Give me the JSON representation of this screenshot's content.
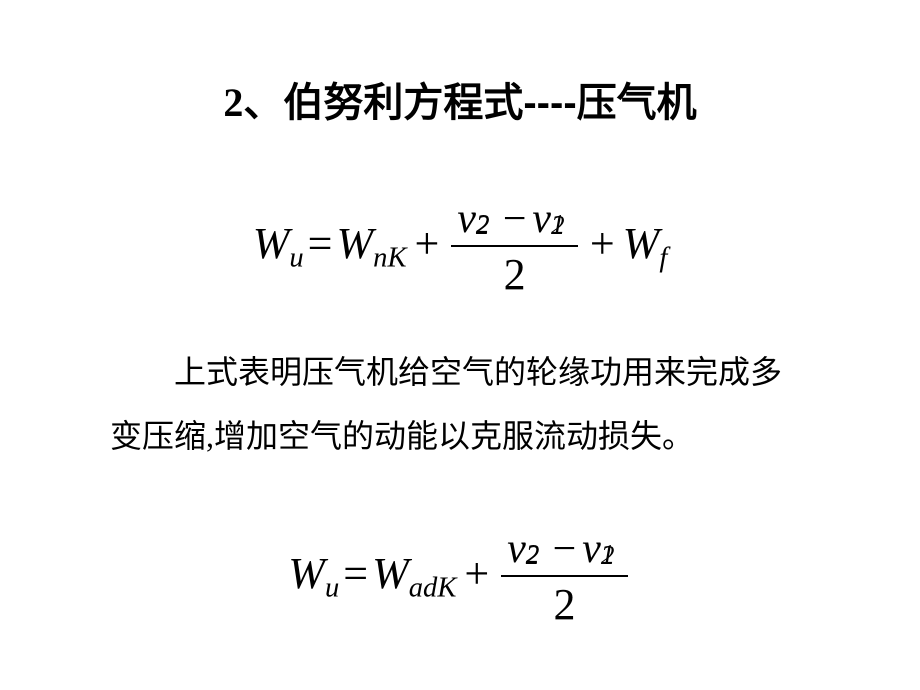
{
  "slide": {
    "background_color": "#ffffff",
    "text_color": "#000000"
  },
  "title": {
    "number": "2",
    "separator": "、",
    "text": "伯努利方程式----压气机",
    "fontsize": 40,
    "font_weight": "bold"
  },
  "equation1": {
    "lhs_var": "W",
    "lhs_sub": "u",
    "eq": "=",
    "term1_var": "W",
    "term1_sub": "nK",
    "plus": "+",
    "frac_num_v1": "v",
    "frac_num_v1_sub": "2",
    "frac_num_v1_sup": "2",
    "frac_num_minus": "−",
    "frac_num_v2": "v",
    "frac_num_v2_sub": "1",
    "frac_num_v2_sup": "2",
    "frac_den": "2",
    "term3_var": "W",
    "term3_sub": "f",
    "fontsize": 44
  },
  "body": {
    "text": "上式表明压气机给空气的轮缘功用来完成多变压缩,增加空气的动能以克服流动损失。",
    "fontsize": 32,
    "line_height": 2.0
  },
  "equation2": {
    "lhs_var": "W",
    "lhs_sub": "u",
    "eq": "=",
    "term1_var": "W",
    "term1_sub": "adK",
    "plus": "+",
    "frac_num_v1": "v",
    "frac_num_v1_sub": "2",
    "frac_num_v1_sup": "2",
    "frac_num_minus": "−",
    "frac_num_v2": "v",
    "frac_num_v2_sub": "1",
    "frac_num_v2_sup": "2",
    "frac_den": "2",
    "fontsize": 44
  }
}
